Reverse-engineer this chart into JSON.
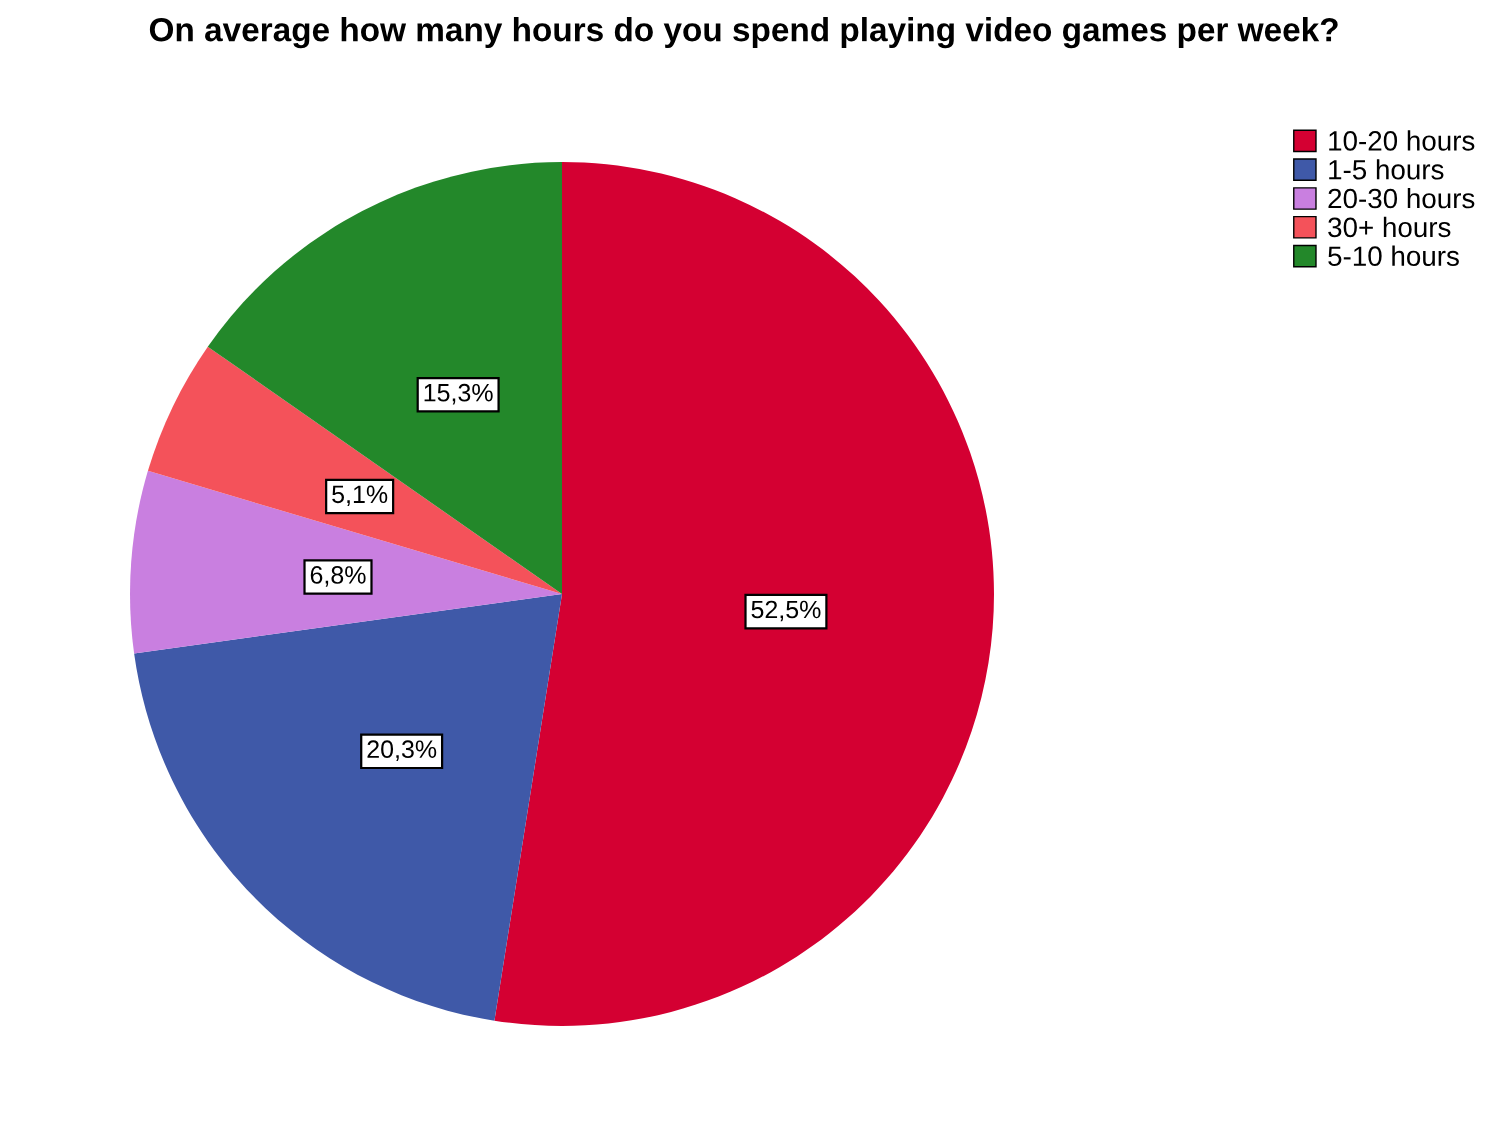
{
  "chart_data": {
    "type": "pie",
    "title": "On average how many hours do you spend playing video games per week?",
    "categories": [
      "10-20 hours",
      "1-5 hours",
      "20-30 hours",
      "30+ hours",
      "5-10 hours"
    ],
    "values": [
      52.5,
      20.3,
      6.8,
      5.1,
      15.3
    ],
    "value_labels": [
      "52,5%",
      "20,3%",
      "6,8%",
      "5,1%",
      "15,3%"
    ],
    "colors": [
      "#d40032",
      "#3f59a8",
      "#c97fe0",
      "#f4525a",
      "#23882a"
    ],
    "legend": "top right"
  }
}
